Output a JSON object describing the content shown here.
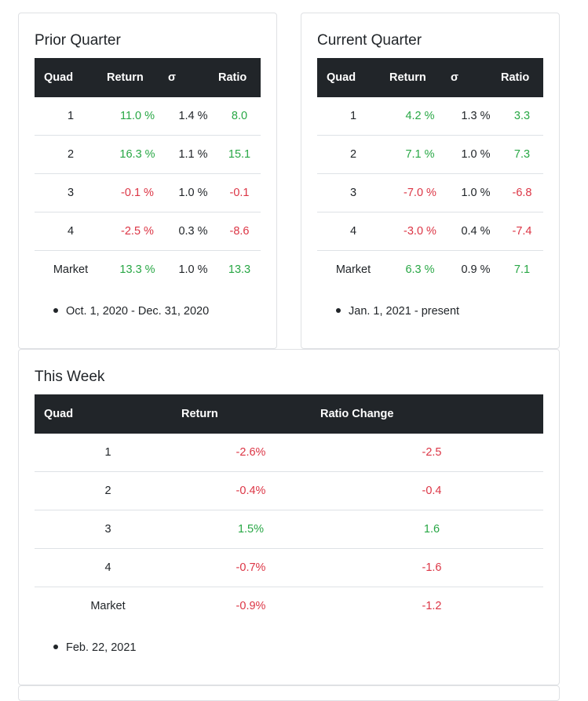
{
  "prior": {
    "title": "Prior Quarter",
    "headers": [
      "Quad",
      "Return",
      "σ",
      "Ratio"
    ],
    "rows": [
      {
        "quad": "1",
        "ret": "11.0 %",
        "ret_tone": "pos",
        "sigma": "1.4 %",
        "ratio": "8.0",
        "ratio_tone": "pos"
      },
      {
        "quad": "2",
        "ret": "16.3 %",
        "ret_tone": "pos",
        "sigma": "1.1 %",
        "ratio": "15.1",
        "ratio_tone": "pos"
      },
      {
        "quad": "3",
        "ret": "-0.1 %",
        "ret_tone": "neg",
        "sigma": "1.0 %",
        "ratio": "-0.1",
        "ratio_tone": "neg"
      },
      {
        "quad": "4",
        "ret": "-2.5 %",
        "ret_tone": "neg",
        "sigma": "0.3 %",
        "ratio": "-8.6",
        "ratio_tone": "neg"
      },
      {
        "quad": "Market",
        "ret": "13.3 %",
        "ret_tone": "pos",
        "sigma": "1.0 %",
        "ratio": "13.3",
        "ratio_tone": "pos"
      }
    ],
    "note": "Oct. 1, 2020 - Dec. 31, 2020"
  },
  "current": {
    "title": "Current Quarter",
    "headers": [
      "Quad",
      "Return",
      "σ",
      "Ratio"
    ],
    "rows": [
      {
        "quad": "1",
        "ret": "4.2 %",
        "ret_tone": "pos",
        "sigma": "1.3 %",
        "ratio": "3.3",
        "ratio_tone": "pos"
      },
      {
        "quad": "2",
        "ret": "7.1 %",
        "ret_tone": "pos",
        "sigma": "1.0 %",
        "ratio": "7.3",
        "ratio_tone": "pos"
      },
      {
        "quad": "3",
        "ret": "-7.0 %",
        "ret_tone": "neg",
        "sigma": "1.0 %",
        "ratio": "-6.8",
        "ratio_tone": "neg"
      },
      {
        "quad": "4",
        "ret": "-3.0 %",
        "ret_tone": "neg",
        "sigma": "0.4 %",
        "ratio": "-7.4",
        "ratio_tone": "neg"
      },
      {
        "quad": "Market",
        "ret": "6.3 %",
        "ret_tone": "pos",
        "sigma": "0.9 %",
        "ratio": "7.1",
        "ratio_tone": "pos"
      }
    ],
    "note": "Jan. 1, 2021 - present"
  },
  "week": {
    "title": "This Week",
    "headers": [
      "Quad",
      "Return",
      "Ratio Change"
    ],
    "rows": [
      {
        "quad": "1",
        "ret": "-2.6%",
        "ret_tone": "neg",
        "change": "-2.5",
        "change_tone": "neg"
      },
      {
        "quad": "2",
        "ret": "-0.4%",
        "ret_tone": "neg",
        "change": "-0.4",
        "change_tone": "neg"
      },
      {
        "quad": "3",
        "ret": "1.5%",
        "ret_tone": "pos",
        "change": "1.6",
        "change_tone": "pos"
      },
      {
        "quad": "4",
        "ret": "-0.7%",
        "ret_tone": "neg",
        "change": "-1.6",
        "change_tone": "neg"
      },
      {
        "quad": "Market",
        "ret": "-0.9%",
        "ret_tone": "neg",
        "change": "-1.2",
        "change_tone": "neg"
      }
    ],
    "note": "Feb. 22, 2021"
  },
  "colors": {
    "positive": "#28a745",
    "negative": "#dc3545",
    "header_bg": "#212529"
  }
}
